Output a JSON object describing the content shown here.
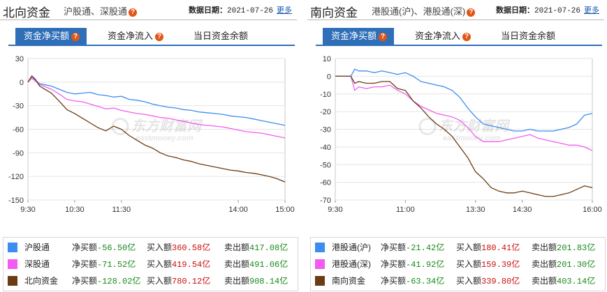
{
  "north": {
    "title": "北向资金",
    "subtitle": "沪股通、深股通",
    "date_label": "数据日期：",
    "date": "2021-07-26",
    "more": "更多",
    "tabs": [
      "资金净买额",
      "资金净流入",
      "当日资金余额"
    ],
    "watermark_cn": "东方财富网",
    "watermark_en": "eastmoney.com",
    "legend": [
      {
        "name": "沪股通",
        "color": "#3b8df0",
        "net_label": "净买额",
        "net": "-56.50亿",
        "buy_label": "买入额",
        "buy": "360.58亿",
        "sell_label": "卖出额",
        "sell": "417.08亿"
      },
      {
        "name": "深股通",
        "color": "#f25cf2",
        "net_label": "净买额",
        "net": "-71.52亿",
        "buy_label": "买入额",
        "buy": "419.54亿",
        "sell_label": "卖出额",
        "sell": "491.06亿"
      },
      {
        "name": "北向资金",
        "color": "#6b3b14",
        "net_label": "净买额",
        "net": "-128.02亿",
        "buy_label": "买入额",
        "buy": "780.12亿",
        "sell_label": "卖出额",
        "sell": "908.14亿"
      }
    ]
  },
  "south": {
    "title": "南向资金",
    "subtitle": "港股通(沪)、港股通(深)",
    "date_label": "数据日期：",
    "date": "2021-07-26",
    "more": "更多",
    "tabs": [
      "资金净买额",
      "资金净流入",
      "当日资金余额"
    ],
    "watermark_cn": "东方财富网",
    "watermark_en": "eastmoney.com",
    "legend": [
      {
        "name": "港股通(沪)",
        "color": "#3b8df0",
        "net_label": "净买额",
        "net": "-21.42亿",
        "buy_label": "买入额",
        "buy": "180.41亿",
        "sell_label": "卖出额",
        "sell": "201.83亿"
      },
      {
        "name": "港股通(深)",
        "color": "#f25cf2",
        "net_label": "净买额",
        "net": "-41.92亿",
        "buy_label": "买入额",
        "buy": "159.39亿",
        "sell_label": "卖出额",
        "sell": "201.30亿"
      },
      {
        "name": "南向资金",
        "color": "#6b3b14",
        "net_label": "净买额",
        "net": "-63.34亿",
        "buy_label": "买入额",
        "buy": "339.80亿",
        "sell_label": "卖出额",
        "sell": "403.14亿"
      }
    ]
  },
  "chart_data": [
    {
      "type": "line",
      "ylim": [
        -150,
        30
      ],
      "yticks": [
        30,
        0,
        -30,
        -60,
        -90,
        -120,
        -150
      ],
      "xlim": [
        0,
        330
      ],
      "xtick_labels": [
        "9:30",
        "10:30",
        "11:30",
        "14:00",
        "15:00"
      ],
      "xtick_pos": [
        0,
        60,
        120,
        270,
        330
      ],
      "series": [
        {
          "name": "沪股通",
          "color": "#3b8df0",
          "x": [
            0,
            5,
            10,
            15,
            20,
            30,
            40,
            50,
            60,
            70,
            80,
            90,
            100,
            110,
            120,
            130,
            140,
            150,
            160,
            170,
            180,
            190,
            200,
            210,
            220,
            230,
            240,
            250,
            260,
            270,
            280,
            290,
            300,
            310,
            320,
            330
          ],
          "y": [
            0,
            6,
            2,
            -2,
            -3,
            -5,
            -9,
            -13,
            -15,
            -14,
            -13,
            -16,
            -17,
            -19,
            -18,
            -22,
            -23,
            -25,
            -28,
            -30,
            -32,
            -33,
            -35,
            -36,
            -38,
            -39,
            -40,
            -41,
            -43,
            -44,
            -45,
            -47,
            -49,
            -51,
            -53,
            -55
          ]
        },
        {
          "name": "深股通",
          "color": "#f25cf2",
          "x": [
            0,
            5,
            10,
            15,
            20,
            30,
            40,
            50,
            60,
            70,
            80,
            90,
            100,
            110,
            120,
            130,
            140,
            150,
            160,
            170,
            180,
            190,
            200,
            210,
            220,
            230,
            240,
            250,
            260,
            270,
            280,
            290,
            300,
            310,
            320,
            330
          ],
          "y": [
            0,
            5,
            1,
            -3,
            -5,
            -9,
            -15,
            -22,
            -24,
            -25,
            -28,
            -31,
            -34,
            -33,
            -36,
            -38,
            -40,
            -41,
            -43,
            -45,
            -46,
            -48,
            -50,
            -52,
            -54,
            -55,
            -56,
            -57,
            -59,
            -61,
            -63,
            -64,
            -65,
            -67,
            -69,
            -71
          ]
        },
        {
          "name": "北向资金",
          "color": "#6b3b14",
          "x": [
            0,
            5,
            10,
            15,
            20,
            30,
            40,
            50,
            60,
            70,
            80,
            90,
            100,
            110,
            120,
            130,
            140,
            150,
            160,
            170,
            180,
            190,
            200,
            210,
            220,
            230,
            240,
            250,
            260,
            270,
            280,
            290,
            300,
            310,
            320,
            330
          ],
          "y": [
            0,
            8,
            3,
            -5,
            -8,
            -14,
            -24,
            -35,
            -40,
            -46,
            -52,
            -58,
            -62,
            -56,
            -60,
            -68,
            -74,
            -80,
            -84,
            -90,
            -94,
            -96,
            -99,
            -101,
            -104,
            -106,
            -108,
            -110,
            -112,
            -113,
            -115,
            -116,
            -118,
            -120,
            -123,
            -127
          ]
        }
      ]
    },
    {
      "type": "line",
      "ylim": [
        -70,
        10
      ],
      "yticks": [
        10,
        0,
        -10,
        -20,
        -30,
        -40,
        -50,
        -60,
        -70
      ],
      "xlim": [
        0,
        330
      ],
      "xtick_labels": [
        "9:30",
        "11:00",
        "13:30",
        "14:30",
        "16:00"
      ],
      "xtick_pos": [
        0,
        90,
        180,
        240,
        330
      ],
      "series": [
        {
          "name": "港股通(沪)",
          "color": "#3b8df0",
          "x": [
            0,
            10,
            20,
            25,
            30,
            40,
            50,
            60,
            70,
            80,
            90,
            100,
            110,
            120,
            130,
            140,
            150,
            160,
            170,
            180,
            190,
            200,
            210,
            220,
            230,
            240,
            250,
            260,
            270,
            280,
            290,
            300,
            310,
            320,
            330
          ],
          "y": [
            0,
            0,
            0,
            4,
            3,
            3,
            2,
            3,
            2,
            1,
            2,
            0,
            -3,
            -4,
            -5,
            -6,
            -8,
            -12,
            -18,
            -23,
            -27,
            -28,
            -29,
            -30,
            -31,
            -31,
            -30,
            -31,
            -31,
            -31,
            -30,
            -29,
            -27,
            -22,
            -21
          ]
        },
        {
          "name": "港股通(深)",
          "color": "#f25cf2",
          "x": [
            0,
            10,
            20,
            25,
            30,
            40,
            50,
            60,
            70,
            80,
            90,
            100,
            110,
            120,
            130,
            140,
            150,
            160,
            170,
            180,
            190,
            200,
            210,
            220,
            230,
            240,
            250,
            260,
            270,
            280,
            290,
            300,
            310,
            320,
            330
          ],
          "y": [
            0,
            0,
            0,
            -8,
            -6,
            -7,
            -6,
            -6,
            -5,
            -8,
            -10,
            -14,
            -17,
            -19,
            -21,
            -22,
            -23,
            -25,
            -29,
            -34,
            -37,
            -37,
            -37,
            -36,
            -35,
            -34,
            -33,
            -35,
            -36,
            -37,
            -38,
            -39,
            -39,
            -40,
            -42
          ]
        },
        {
          "name": "南向资金",
          "color": "#6b3b14",
          "x": [
            0,
            10,
            20,
            25,
            30,
            40,
            50,
            60,
            70,
            80,
            90,
            100,
            110,
            120,
            130,
            140,
            150,
            160,
            170,
            180,
            190,
            200,
            210,
            220,
            230,
            240,
            250,
            260,
            270,
            280,
            290,
            300,
            310,
            320,
            330
          ],
          "y": [
            0,
            0,
            0,
            -4,
            -3,
            -4,
            -4,
            -3,
            -3,
            -7,
            -8,
            -14,
            -18,
            -23,
            -27,
            -30,
            -34,
            -40,
            -46,
            -54,
            -58,
            -63,
            -65,
            -66,
            -66,
            -65,
            -66,
            -67,
            -68,
            -68,
            -67,
            -66,
            -64,
            -62,
            -63
          ]
        }
      ]
    }
  ]
}
